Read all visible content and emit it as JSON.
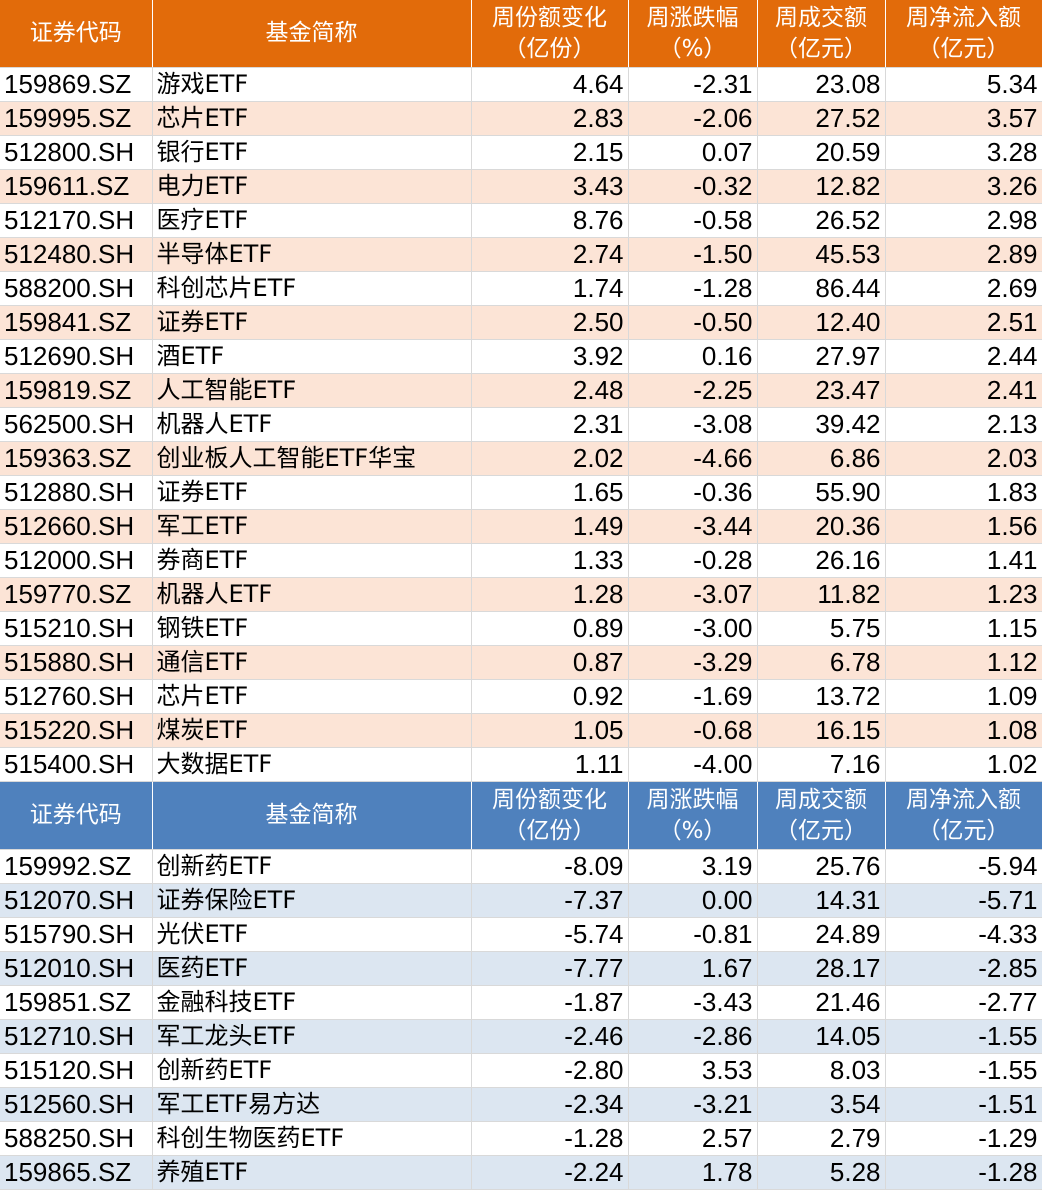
{
  "colors": {
    "inflow_header": "#E26B0A",
    "inflow_alt_row": "#FCE4D6",
    "outflow_header": "#4F81BD",
    "outflow_alt_row": "#DCE6F1"
  },
  "headers": [
    [
      "证券代码"
    ],
    [
      "基金简称"
    ],
    [
      "周份额变化",
      "（亿份）"
    ],
    [
      "周涨跌幅",
      "（%）"
    ],
    [
      "周成交额",
      "（亿元）"
    ],
    [
      "周净流入额",
      "（亿元）"
    ]
  ],
  "inflow_rows": [
    [
      "159869.SZ",
      "游戏ETF",
      "4.64",
      "-2.31",
      "23.08",
      "5.34"
    ],
    [
      "159995.SZ",
      "芯片ETF",
      "2.83",
      "-2.06",
      "27.52",
      "3.57"
    ],
    [
      "512800.SH",
      "银行ETF",
      "2.15",
      "0.07",
      "20.59",
      "3.28"
    ],
    [
      "159611.SZ",
      "电力ETF",
      "3.43",
      "-0.32",
      "12.82",
      "3.26"
    ],
    [
      "512170.SH",
      "医疗ETF",
      "8.76",
      "-0.58",
      "26.52",
      "2.98"
    ],
    [
      "512480.SH",
      "半导体ETF",
      "2.74",
      "-1.50",
      "45.53",
      "2.89"
    ],
    [
      "588200.SH",
      "科创芯片ETF",
      "1.74",
      "-1.28",
      "86.44",
      "2.69"
    ],
    [
      "159841.SZ",
      "证券ETF",
      "2.50",
      "-0.50",
      "12.40",
      "2.51"
    ],
    [
      "512690.SH",
      "酒ETF",
      "3.92",
      "0.16",
      "27.97",
      "2.44"
    ],
    [
      "159819.SZ",
      "人工智能ETF",
      "2.48",
      "-2.25",
      "23.47",
      "2.41"
    ],
    [
      "562500.SH",
      "机器人ETF",
      "2.31",
      "-3.08",
      "39.42",
      "2.13"
    ],
    [
      "159363.SZ",
      "创业板人工智能ETF华宝",
      "2.02",
      "-4.66",
      "6.86",
      "2.03"
    ],
    [
      "512880.SH",
      "证券ETF",
      "1.65",
      "-0.36",
      "55.90",
      "1.83"
    ],
    [
      "512660.SH",
      "军工ETF",
      "1.49",
      "-3.44",
      "20.36",
      "1.56"
    ],
    [
      "512000.SH",
      "券商ETF",
      "1.33",
      "-0.28",
      "26.16",
      "1.41"
    ],
    [
      "159770.SZ",
      "机器人ETF",
      "1.28",
      "-3.07",
      "11.82",
      "1.23"
    ],
    [
      "515210.SH",
      "钢铁ETF",
      "0.89",
      "-3.00",
      "5.75",
      "1.15"
    ],
    [
      "515880.SH",
      "通信ETF",
      "0.87",
      "-3.29",
      "6.78",
      "1.12"
    ],
    [
      "512760.SH",
      "芯片ETF",
      "0.92",
      "-1.69",
      "13.72",
      "1.09"
    ],
    [
      "515220.SH",
      "煤炭ETF",
      "1.05",
      "-0.68",
      "16.15",
      "1.08"
    ],
    [
      "515400.SH",
      "大数据ETF",
      "1.11",
      "-4.00",
      "7.16",
      "1.02"
    ]
  ],
  "outflow_rows": [
    [
      "159992.SZ",
      "创新药ETF",
      "-8.09",
      "3.19",
      "25.76",
      "-5.94"
    ],
    [
      "512070.SH",
      "证券保险ETF",
      "-7.37",
      "0.00",
      "14.31",
      "-5.71"
    ],
    [
      "515790.SH",
      "光伏ETF",
      "-5.74",
      "-0.81",
      "24.89",
      "-4.33"
    ],
    [
      "512010.SH",
      "医药ETF",
      "-7.77",
      "1.67",
      "28.17",
      "-2.85"
    ],
    [
      "159851.SZ",
      "金融科技ETF",
      "-1.87",
      "-3.43",
      "21.46",
      "-2.77"
    ],
    [
      "512710.SH",
      "军工龙头ETF",
      "-2.46",
      "-2.86",
      "14.05",
      "-1.55"
    ],
    [
      "515120.SH",
      "创新药ETF",
      "-2.80",
      "3.53",
      "8.03",
      "-1.55"
    ],
    [
      "512560.SH",
      "军工ETF易方达",
      "-2.34",
      "-3.21",
      "3.54",
      "-1.51"
    ],
    [
      "588250.SH",
      "科创生物医药ETF",
      "-1.28",
      "2.57",
      "2.79",
      "-1.29"
    ],
    [
      "159865.SZ",
      "养殖ETF",
      "-2.24",
      "1.78",
      "5.28",
      "-1.28"
    ]
  ]
}
